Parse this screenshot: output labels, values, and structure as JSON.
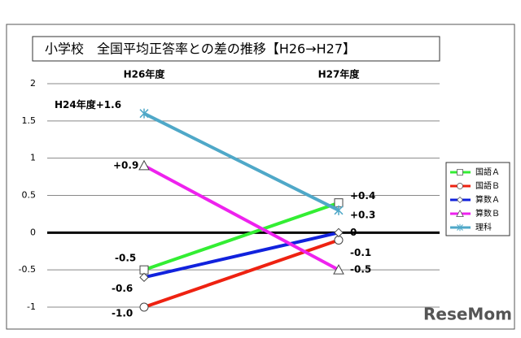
{
  "chart_data": {
    "type": "line",
    "title": "小学校　全国平均正答率との差の推移【H26→H27】",
    "categories": [
      "H26年度",
      "H27年度"
    ],
    "series": [
      {
        "name": "国語Ａ",
        "color": "#33ee33",
        "marker": "square",
        "values": [
          -0.5,
          0.4
        ],
        "value_labels": [
          "-0.5",
          "+0.4"
        ]
      },
      {
        "name": "国語Ｂ",
        "color": "#ee2211",
        "marker": "circle",
        "values": [
          -1.0,
          -0.1
        ],
        "value_labels": [
          "-1.0",
          "-0.1"
        ]
      },
      {
        "name": "算数Ａ",
        "color": "#1122dd",
        "marker": "diamond",
        "values": [
          -0.6,
          0.0
        ],
        "value_labels": [
          "-0.6",
          "0"
        ]
      },
      {
        "name": "算数Ｂ",
        "color": "#ee22ee",
        "marker": "triangle",
        "values": [
          0.9,
          -0.5
        ],
        "value_labels": [
          "+0.9",
          "-0.5"
        ]
      },
      {
        "name": "理科",
        "color": "#4fa8c8",
        "marker": "star",
        "values": [
          1.6,
          0.3
        ],
        "value_labels": [
          "H24年度+1.6",
          "+0.3"
        ]
      }
    ],
    "ylim": [
      -1,
      2
    ],
    "yticks": [
      -1,
      -0.5,
      0,
      0.5,
      1,
      1.5,
      2
    ],
    "grid": true,
    "watermark": "ReseMom"
  }
}
